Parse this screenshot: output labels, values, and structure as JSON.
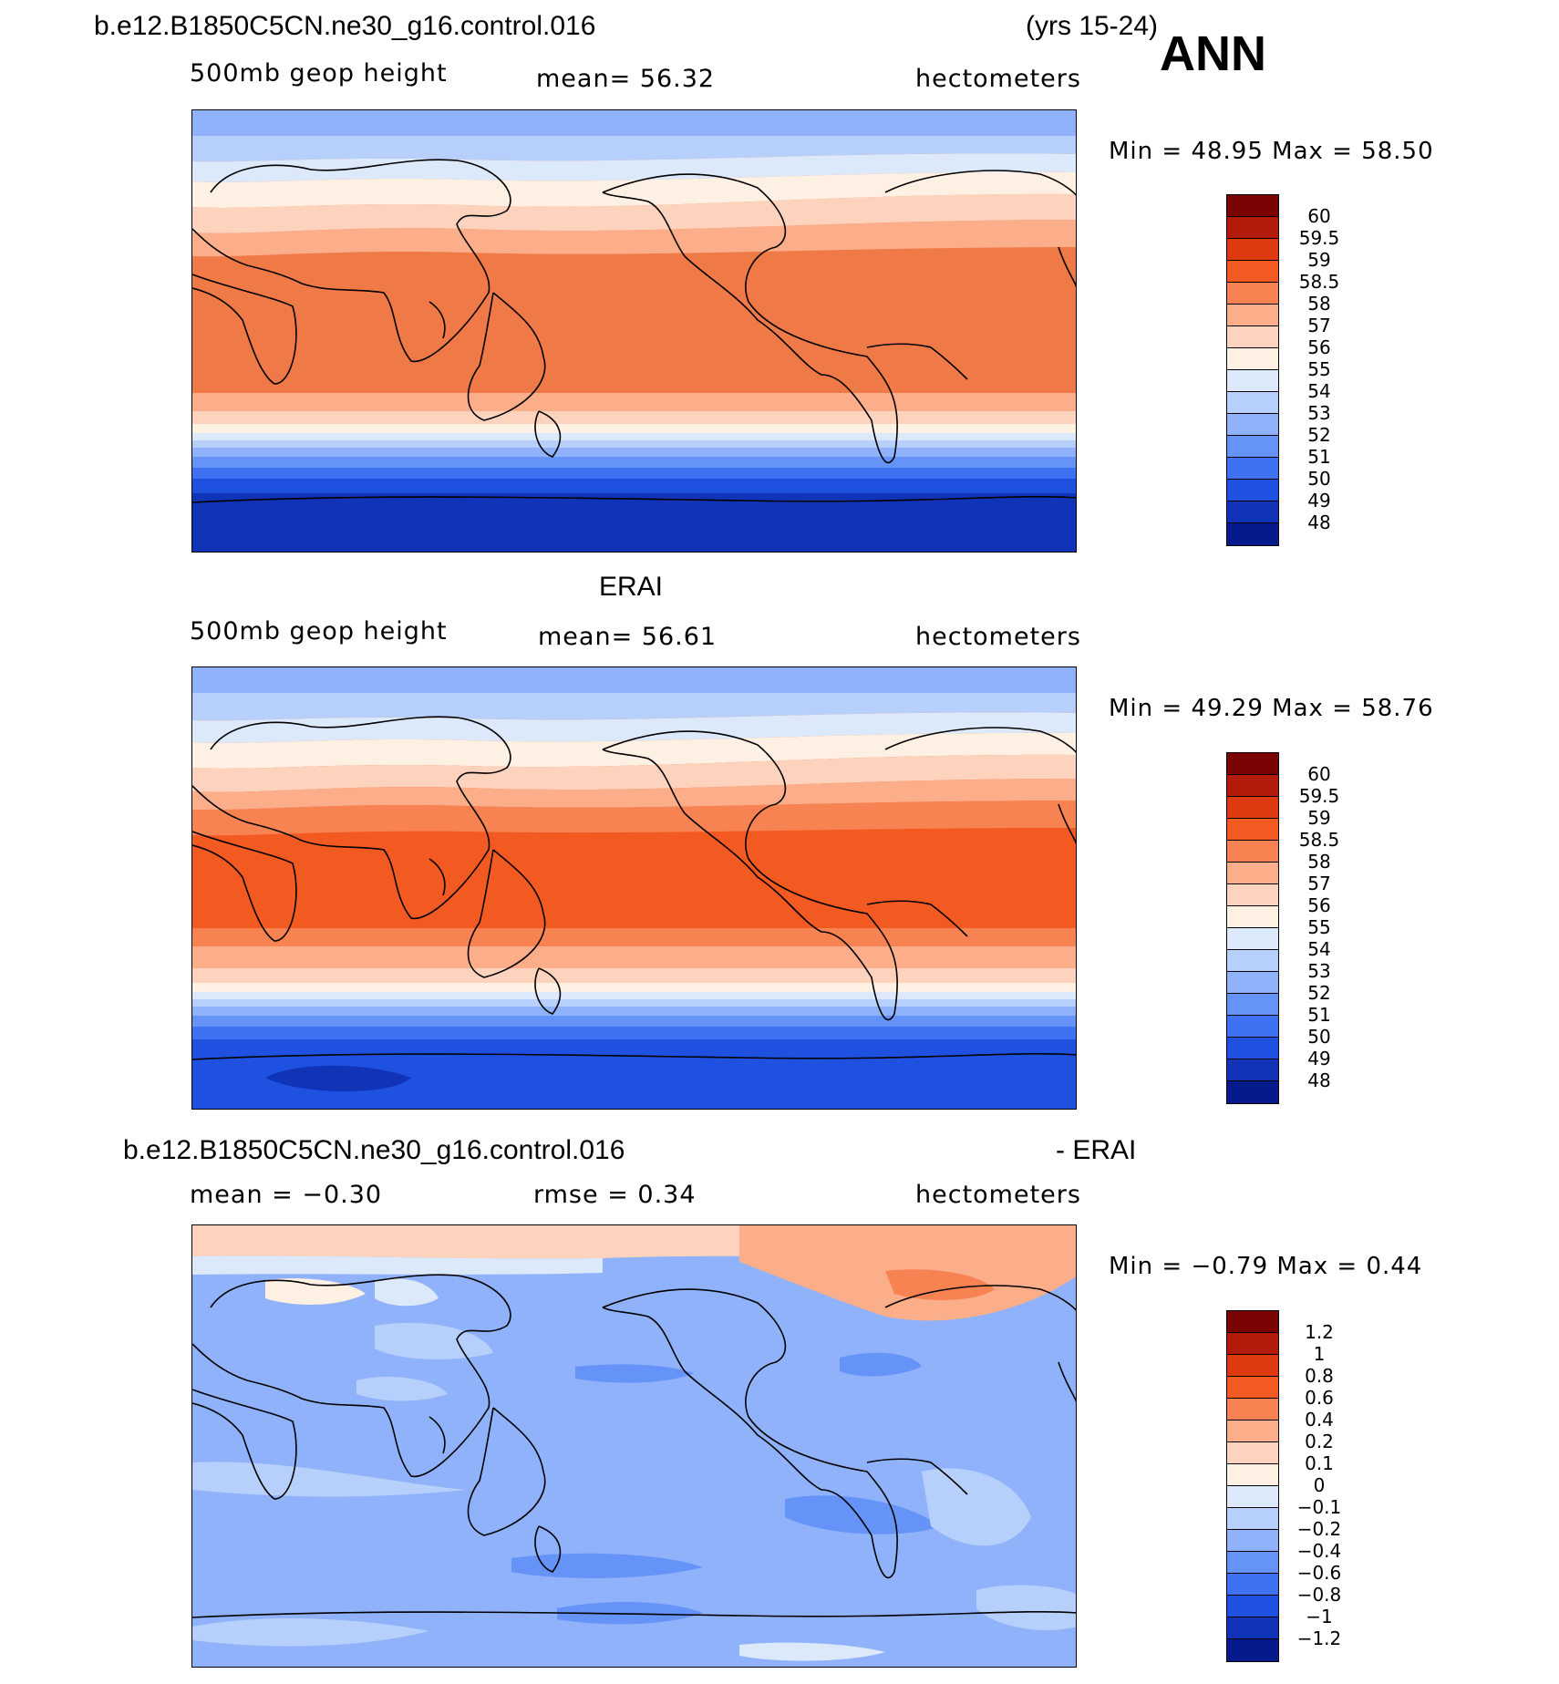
{
  "header": {
    "case_name": "b.e12.B1850C5CN.ne30_g16.control.016",
    "years": "(yrs 15-24)",
    "season": "ANN"
  },
  "panel1": {
    "variable": "500mb geop height",
    "mean": "mean=   56.32",
    "units": "hectometers",
    "minmax": "Min =   48.95  Max =   58.50"
  },
  "panel2": {
    "title": "ERAI",
    "variable": "500mb geop height",
    "mean": "mean=   56.61",
    "units": "hectometers",
    "minmax": "Min =   49.29  Max =   58.76"
  },
  "panel3": {
    "title_left": "b.e12.B1850C5CN.ne30_g16.control.016",
    "title_right": "- ERAI",
    "mean": "mean =   −0.30",
    "rmse": "rmse =     0.34",
    "units": "hectometers",
    "minmax": "Min =   −0.79  Max =     0.44"
  },
  "colorbar_abs": {
    "labels": [
      "60",
      "59.5",
      "59",
      "58.5",
      "58",
      "57",
      "56",
      "55",
      "54",
      "53",
      "52",
      "51",
      "50",
      "49",
      "48"
    ],
    "colors": [
      "#7a0404",
      "#b31c0a",
      "#dd3a10",
      "#f25a22",
      "#f88352",
      "#fcae8a",
      "#fdd3bd",
      "#fef0e3",
      "#dce9fa",
      "#b6cffb",
      "#8fb2fb",
      "#6593f8",
      "#3f72f2",
      "#1e51e0",
      "#1033b8",
      "#061a8c"
    ]
  },
  "colorbar_diff": {
    "labels": [
      "1.2",
      "1",
      "0.8",
      "0.6",
      "0.4",
      "0.2",
      "0.1",
      "0",
      "−0.1",
      "−0.2",
      "−0.4",
      "−0.6",
      "−0.8",
      "−1",
      "−1.2"
    ],
    "colors": [
      "#7a0404",
      "#b31c0a",
      "#dd3a10",
      "#f25a22",
      "#f88352",
      "#fcae8a",
      "#fdd3bd",
      "#fef0e3",
      "#dce9fa",
      "#b6cffb",
      "#8fb2fb",
      "#6593f8",
      "#3f72f2",
      "#1e51e0",
      "#1033b8",
      "#061a8c"
    ]
  }
}
